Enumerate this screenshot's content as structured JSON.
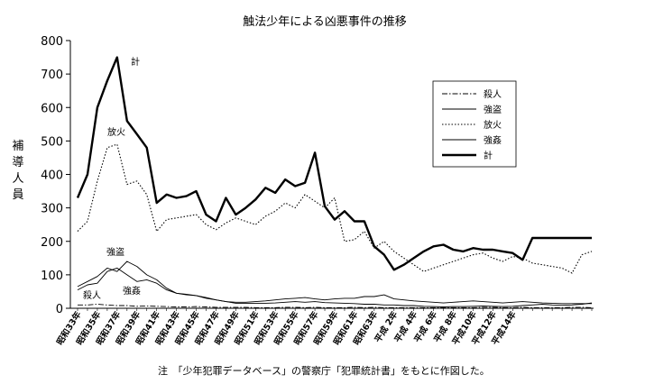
{
  "chart_data": {
    "type": "line",
    "title": "触法少年による凶悪事件の推移",
    "ylabel": "補導人員",
    "note": "注　「少年犯罪データベース」の警察庁「犯罪統計書」をもとに作図した。",
    "ylim": [
      0,
      800
    ],
    "yticks": [
      "0",
      "100",
      "200",
      "300",
      "400",
      "500",
      "600",
      "700",
      "800"
    ],
    "x_tick_labels": [
      "昭和33年",
      "昭和35年",
      "昭和37年",
      "昭和39年",
      "昭和41年",
      "昭和43年",
      "昭和45年",
      "昭和47年",
      "昭和49年",
      "昭和51年",
      "昭和53年",
      "昭和55年",
      "昭和57年",
      "昭和59年",
      "昭和61年",
      "昭和63年",
      "平成 2年",
      "平成 4年",
      "平成 6年",
      "平成 8年",
      "平成10年",
      "平成12年",
      "平成14年"
    ],
    "grid": false,
    "legend_placement": "right",
    "series": [
      {
        "name": "殺人",
        "style": "dashdot",
        "values": [
          10,
          10,
          12,
          10,
          8,
          8,
          6,
          7,
          6,
          5,
          4,
          4,
          5,
          4,
          3,
          3,
          3,
          3,
          2,
          2,
          2,
          3,
          3,
          2,
          3,
          2,
          2,
          2,
          3,
          2,
          3,
          2,
          2,
          2,
          2,
          2,
          2,
          2,
          2,
          2,
          2,
          3,
          3,
          2,
          2,
          3,
          2,
          2,
          2,
          2,
          3,
          3,
          2
        ]
      },
      {
        "name": "強盗",
        "style": "solid-thin",
        "values": [
          65,
          80,
          95,
          120,
          110,
          140,
          125,
          100,
          85,
          60,
          45,
          40,
          38,
          32,
          25,
          20,
          15,
          15,
          15,
          15,
          16,
          18,
          20,
          18,
          20,
          17,
          16,
          15,
          14,
          12,
          12,
          10,
          10,
          8,
          8,
          6,
          5,
          4,
          5,
          5,
          6,
          7,
          6,
          5,
          6,
          8,
          10,
          12,
          10,
          9,
          10,
          12,
          16
        ]
      },
      {
        "name": "放火",
        "style": "dotted",
        "values": [
          230,
          260,
          380,
          480,
          490,
          370,
          380,
          340,
          230,
          265,
          270,
          275,
          280,
          250,
          235,
          255,
          270,
          260,
          250,
          275,
          290,
          315,
          300,
          340,
          320,
          300,
          330,
          200,
          205,
          230,
          180,
          200,
          170,
          150,
          130,
          110,
          120,
          130,
          140,
          150,
          160,
          165,
          150,
          140,
          155,
          150,
          135,
          130,
          125,
          120,
          105,
          160,
          170
        ]
      },
      {
        "name": "強姦",
        "style": "solid-thin",
        "values": [
          55,
          70,
          75,
          110,
          120,
          100,
          80,
          85,
          75,
          55,
          45,
          42,
          38,
          30,
          25,
          20,
          18,
          18,
          20,
          22,
          25,
          28,
          30,
          32,
          28,
          25,
          28,
          30,
          30,
          35,
          35,
          40,
          28,
          25,
          22,
          20,
          18,
          16,
          18,
          20,
          22,
          20,
          18,
          16,
          18,
          20,
          18,
          16,
          15,
          14,
          14,
          14,
          14
        ]
      },
      {
        "name": "計",
        "style": "solid-thick",
        "values": [
          330,
          400,
          600,
          680,
          750,
          560,
          520,
          480,
          315,
          340,
          330,
          335,
          350,
          280,
          260,
          330,
          280,
          300,
          325,
          360,
          345,
          385,
          365,
          375,
          465,
          305,
          265,
          290,
          260,
          260,
          185,
          160,
          115,
          130,
          150,
          170,
          185,
          190,
          175,
          170,
          180,
          175,
          175,
          170,
          165,
          145,
          210,
          210,
          210,
          210,
          210,
          210,
          210
        ]
      }
    ],
    "annotations": [
      {
        "text": "計",
        "series": "計"
      },
      {
        "text": "放火",
        "series": "放火"
      },
      {
        "text": "強盗",
        "series": "強盗"
      },
      {
        "text": "強姦",
        "series": "強姦"
      },
      {
        "text": "殺人",
        "series": "殺人"
      }
    ]
  }
}
